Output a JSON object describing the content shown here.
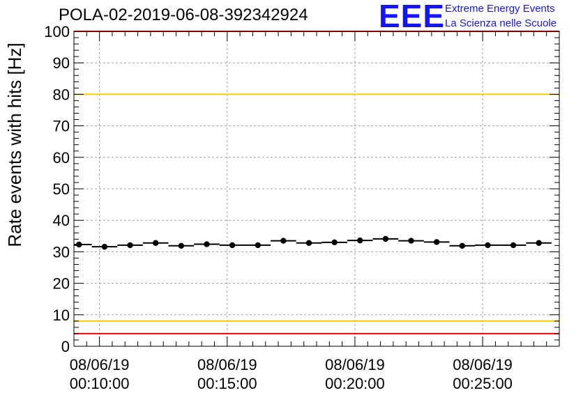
{
  "title": "POLA-02-2019-06-08-392342924",
  "logo": {
    "mark": "EEE",
    "line1": "Extreme Energy Events",
    "line2": "La Scienza nelle Scuole",
    "color": "#1515f0"
  },
  "chart_data": {
    "type": "scatter",
    "title": "POLA-02-2019-06-08-392342924",
    "xlabel": "",
    "ylabel": "Rate events with hits [Hz]",
    "ylim": [
      0,
      100
    ],
    "yticks": [
      0,
      10,
      20,
      30,
      40,
      50,
      60,
      70,
      80,
      90,
      100
    ],
    "x_unit": "minutes after 00:00:00 on 08/06/19",
    "xlim": [
      9.0,
      28.0
    ],
    "xticks": [
      {
        "value": 10,
        "date": "08/06/19",
        "time": "00:10:00"
      },
      {
        "value": 15,
        "date": "08/06/19",
        "time": "00:15:00"
      },
      {
        "value": 20,
        "date": "08/06/19",
        "time": "00:20:00"
      },
      {
        "value": 25,
        "date": "08/06/19",
        "time": "00:25:00"
      }
    ],
    "grid": true,
    "bin_width": 1.0,
    "x": [
      9.2,
      10.2,
      11.2,
      12.2,
      13.2,
      14.2,
      15.2,
      16.2,
      17.2,
      18.2,
      19.2,
      20.2,
      21.2,
      22.2,
      23.2,
      24.2,
      25.2,
      26.2,
      27.2
    ],
    "y": [
      32.3,
      31.6,
      32.1,
      32.8,
      31.9,
      32.4,
      32.1,
      32.1,
      33.5,
      32.8,
      33.0,
      33.6,
      34.1,
      33.5,
      33.1,
      31.9,
      32.1,
      32.1,
      32.8
    ],
    "reference_lines": [
      {
        "y": 100,
        "color": "#ff0000"
      },
      {
        "y": 80,
        "color": "#ffcc00"
      },
      {
        "y": 8,
        "color": "#ffcc00"
      },
      {
        "y": 4,
        "color": "#ff0000"
      }
    ]
  }
}
